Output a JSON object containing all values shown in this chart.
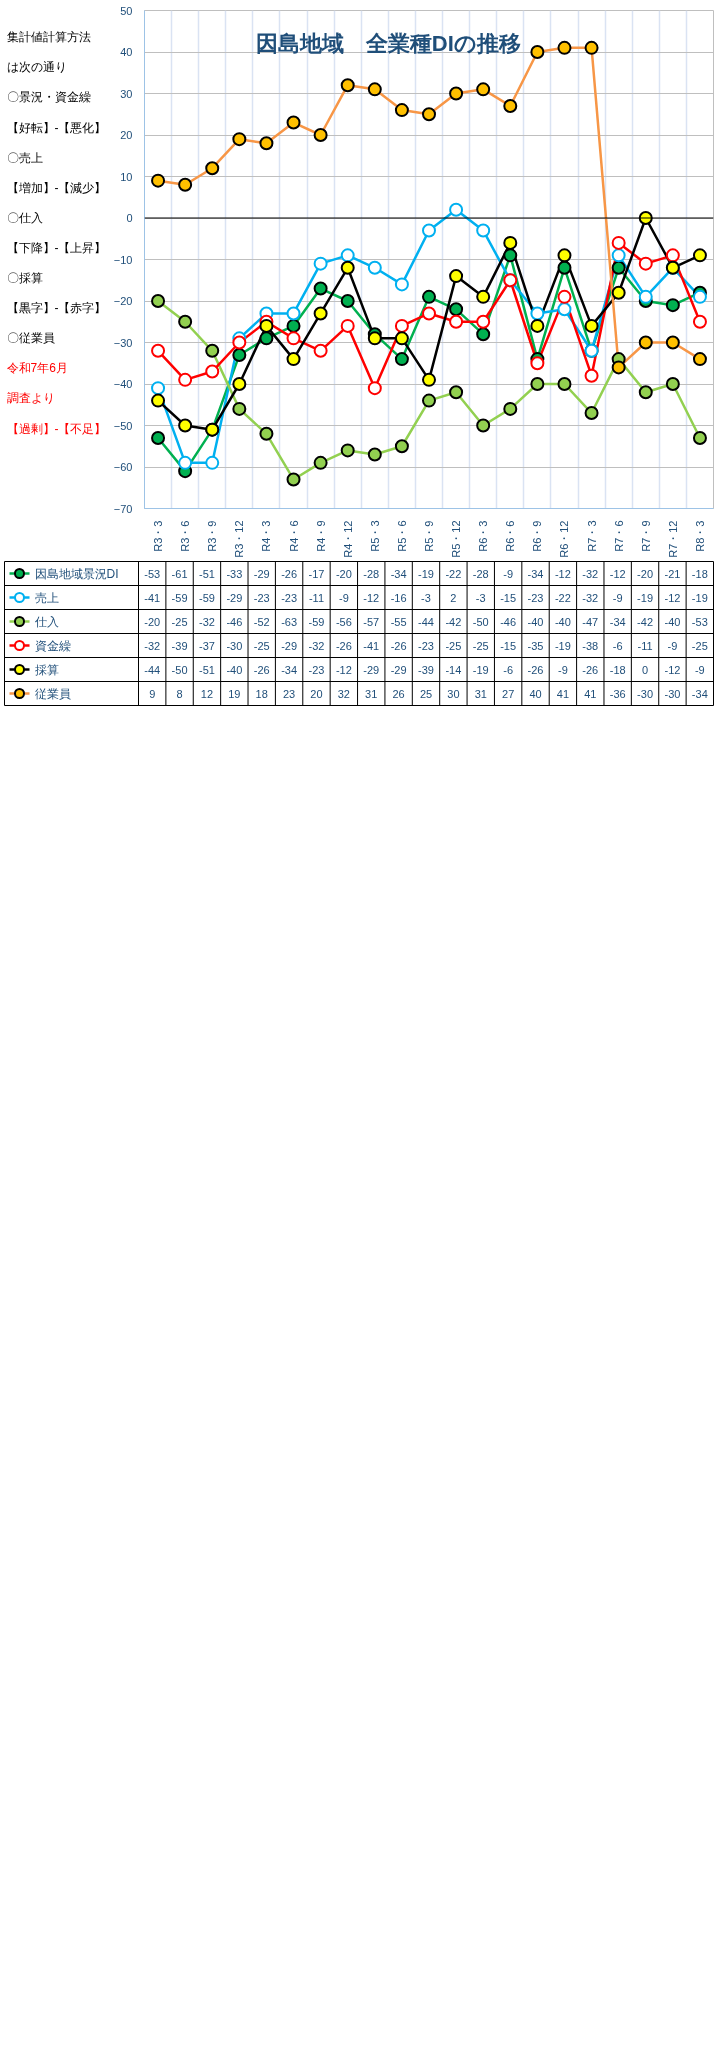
{
  "chart_data": {
    "type": "line",
    "title": "因島地域　全業種DIの推移",
    "categories": [
      "R3・3",
      "R3・6",
      "R3・9",
      "R3・12",
      "R4・3",
      "R4・6",
      "R4・9",
      "R4・12",
      "R5・3",
      "R5・6",
      "R5・9",
      "R5・12",
      "R6・3",
      "R6・6",
      "R6・9",
      "R6・12",
      "R7・3",
      "R7・6",
      "R7・9",
      "R7・12",
      "R8・3"
    ],
    "series": [
      {
        "name": "因島地域景況DI",
        "color": "#00b050",
        "values": [
          -53,
          -61,
          -51,
          -33,
          -29,
          -26,
          -17,
          -20,
          -28,
          -34,
          -19,
          -22,
          -28,
          -9,
          -34,
          -12,
          -32,
          -12,
          -20,
          -21,
          -18
        ]
      },
      {
        "name": "売上",
        "color": "#00b0f0",
        "values": [
          -41,
          -59,
          -59,
          -29,
          -23,
          -23,
          -11,
          -9,
          -12,
          -16,
          -3,
          2,
          -3,
          -15,
          -23,
          -22,
          -32,
          -9,
          -19,
          -12,
          -19
        ]
      },
      {
        "name": "仕入",
        "color": "#92d050",
        "values": [
          -20,
          -25,
          -32,
          -46,
          -52,
          -63,
          -59,
          -56,
          -57,
          -55,
          -44,
          -42,
          -50,
          -46,
          -40,
          -40,
          -47,
          -34,
          -42,
          -40,
          -53
        ]
      },
      {
        "name": "資金繰",
        "color": "#ff0000",
        "values": [
          -32,
          -39,
          -37,
          -30,
          -25,
          -29,
          -32,
          -26,
          -41,
          -26,
          -23,
          -25,
          -25,
          -15,
          -35,
          -19,
          -38,
          -6,
          -11,
          -9,
          -25
        ]
      },
      {
        "name": "採算",
        "color": "#000000",
        "values": [
          -44,
          -50,
          -51,
          -40,
          -26,
          -34,
          -23,
          -12,
          -29,
          -29,
          -39,
          -14,
          -19,
          -6,
          -26,
          -9,
          -26,
          -18,
          0,
          -12,
          -9
        ]
      },
      {
        "name": "従業員",
        "color": "#f79646",
        "values": [
          9,
          8,
          12,
          19,
          18,
          23,
          20,
          32,
          31,
          26,
          25,
          30,
          31,
          27,
          40,
          41,
          41,
          -36,
          -30,
          -30,
          -34
        ]
      }
    ],
    "ylim": [
      -70,
      50
    ],
    "yticks": [
      -70,
      -60,
      -50,
      -40,
      -30,
      -20,
      -10,
      0,
      10,
      20,
      30,
      40,
      50
    ],
    "grid": true,
    "legend": "bottom",
    "marker": "circle",
    "data_labels": true,
    "ref_lines": [
      {
        "axis": "y",
        "value": 0,
        "color": "#000000"
      }
    ],
    "annotations": [
      "集計値計算方法",
      "は次の通り",
      "〇景況・資金繰",
      "【好転】-【悪化】",
      "〇売上",
      "【増加】-【減少】",
      "〇仕入",
      "【下降】-【上昇】",
      "〇採算",
      "【黒字】-【赤字】",
      "〇従業員",
      "令和7年6月",
      "調査より",
      "【過剰】-【不足】"
    ]
  }
}
